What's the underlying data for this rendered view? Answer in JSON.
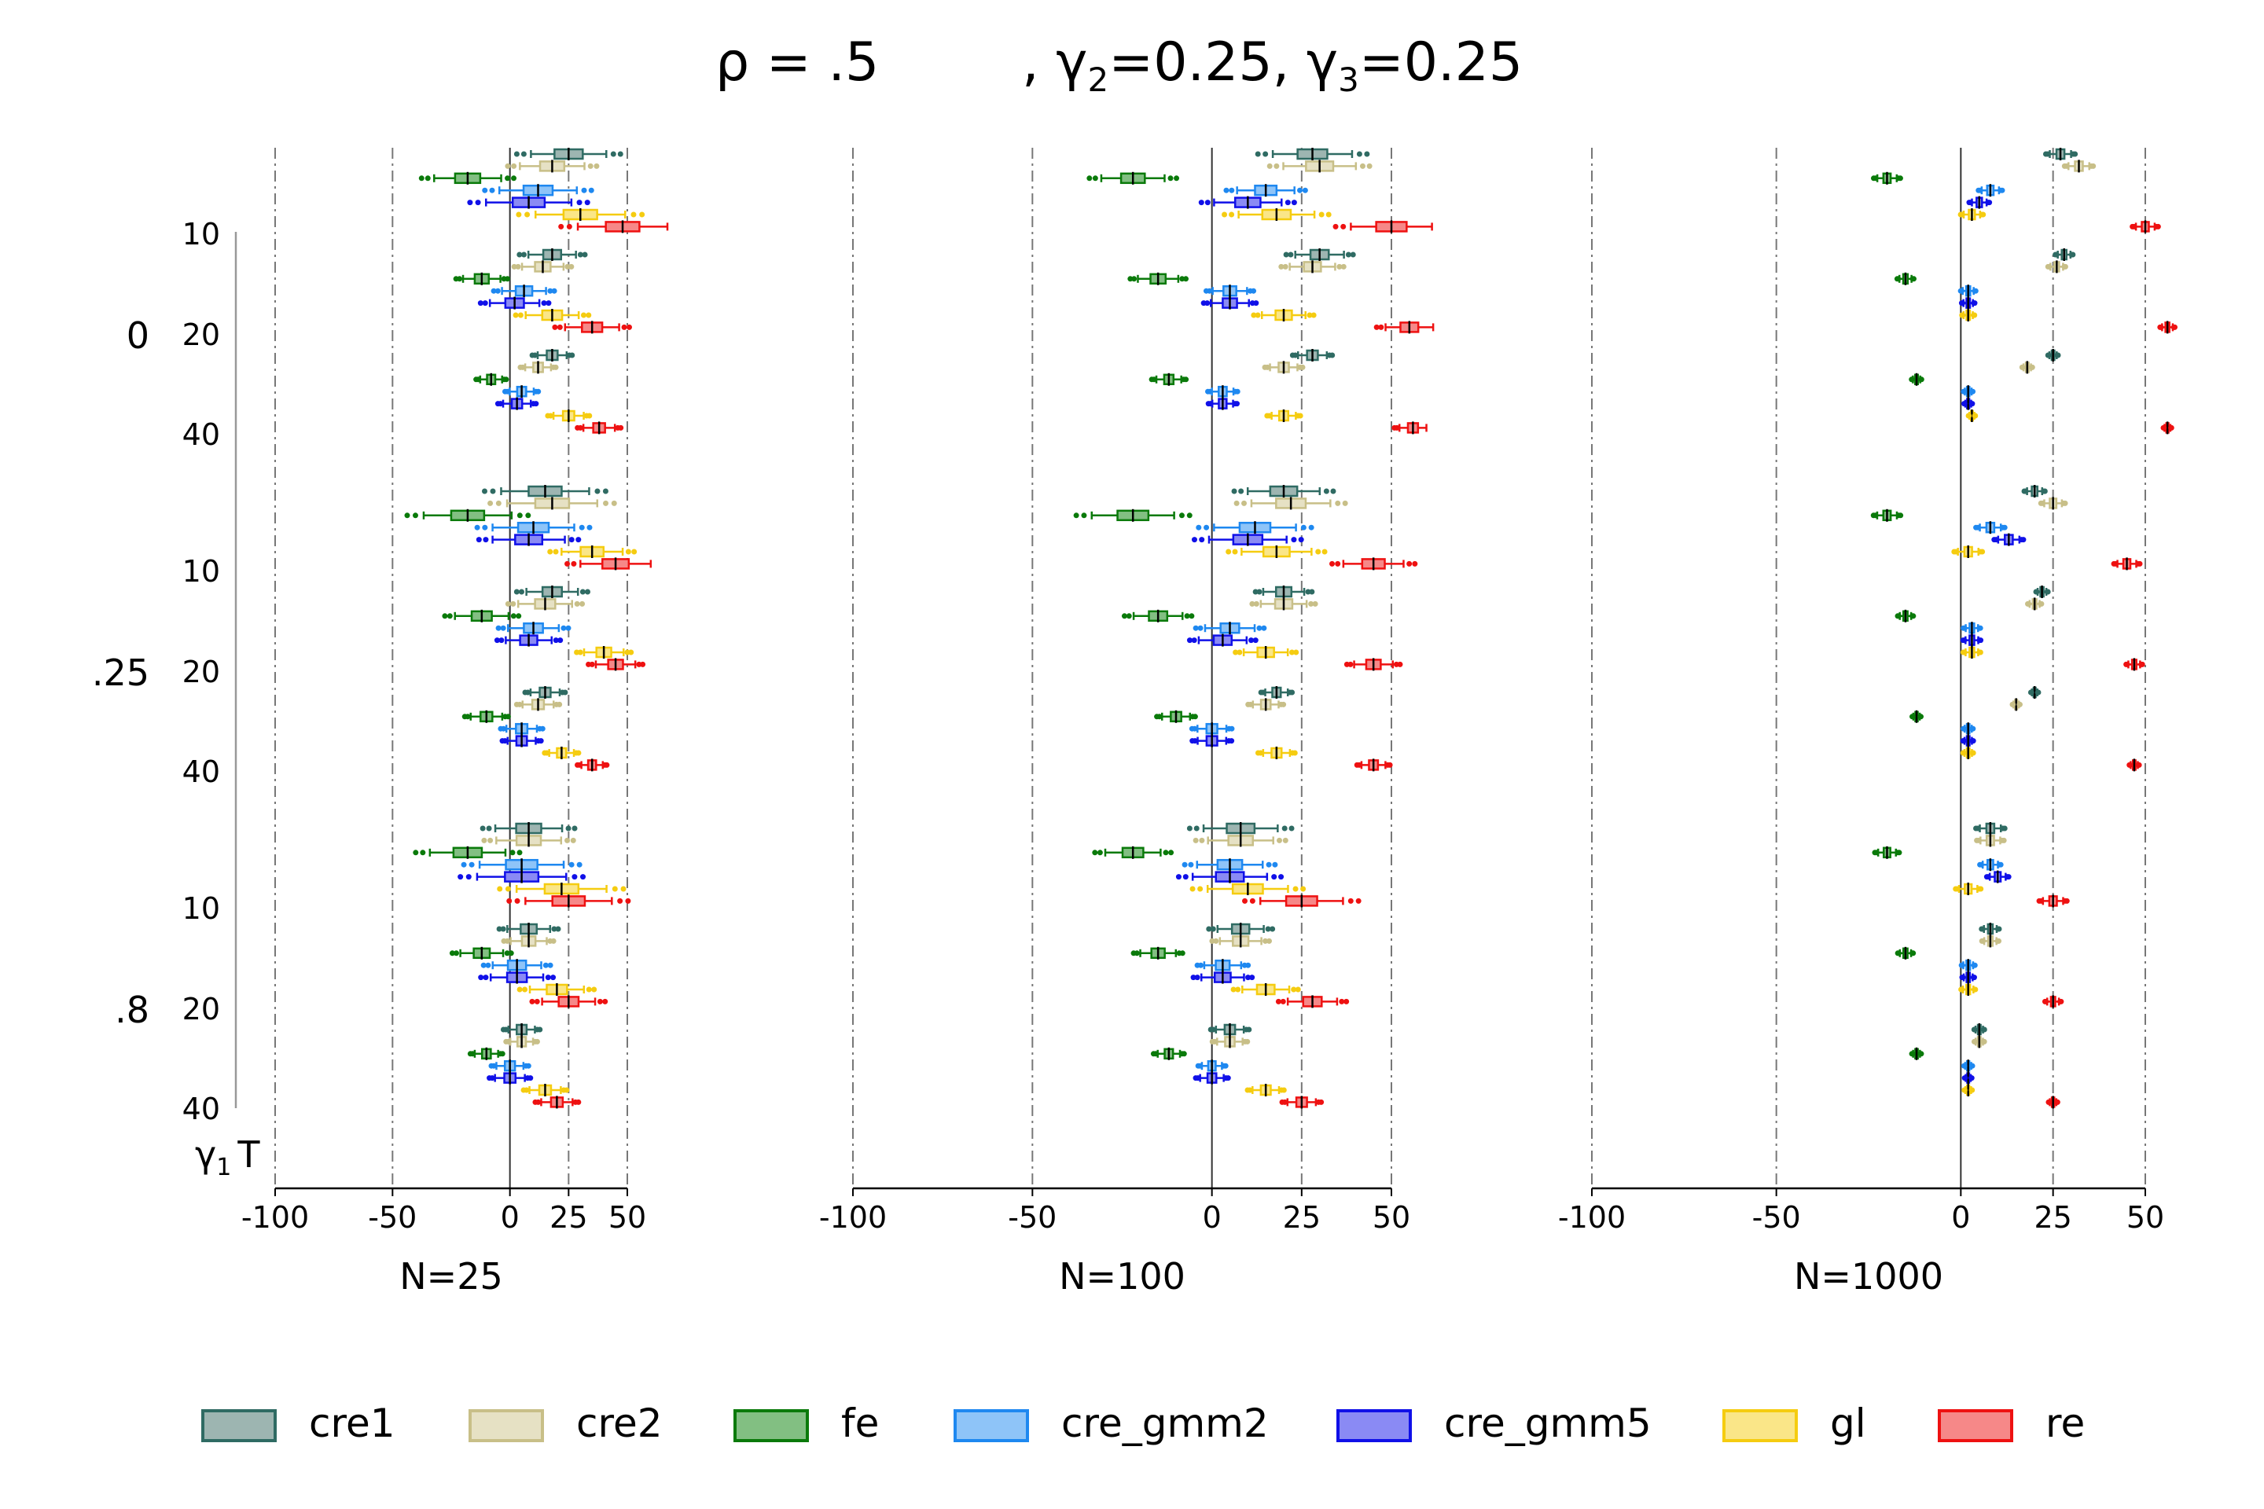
{
  "chart_data": {
    "type": "boxplot",
    "title": {
      "part1": "ρ = .5",
      "part2": ", γ",
      "sub2": "2",
      "part3": "=0.25, γ",
      "sub3": "3",
      "part4": "=0.25"
    },
    "axis_corner": {
      "gamma": "γ",
      "sub": "1",
      "t": "T"
    },
    "x_ticks": [
      -100,
      -50,
      0,
      25,
      50
    ],
    "x_tick_labels": [
      "-100",
      "-50",
      "0",
      "25",
      "50"
    ],
    "xlim": [
      -100,
      55
    ],
    "reference_lines": [
      -100,
      -50,
      25,
      50
    ],
    "panels": [
      "N=25",
      "N=100",
      "N=1000"
    ],
    "gamma1_levels": [
      "0",
      ".25",
      ".8"
    ],
    "T_levels": [
      "10",
      "20",
      "40"
    ],
    "estimators": [
      {
        "name": "cre1",
        "color": "#2f6b63",
        "fill": "#9db5b1"
      },
      {
        "name": "cre2",
        "color": "#c8bf88",
        "fill": "#e6e1c4"
      },
      {
        "name": "fe",
        "color": "#0a7a0a",
        "fill": "#82bf82"
      },
      {
        "name": "cre_gmm2",
        "color": "#1e88f0",
        "fill": "#8ec4f8"
      },
      {
        "name": "cre_gmm5",
        "color": "#1010e8",
        "fill": "#8a8af4"
      },
      {
        "name": "gl",
        "color": "#f5cc10",
        "fill": "#fae688"
      },
      {
        "name": "re",
        "color": "#ee1111",
        "fill": "#f68888"
      }
    ],
    "medians": {
      "N=25": {
        "0": {
          "10": [
            25,
            18,
            -18,
            12,
            8,
            30,
            48
          ],
          "20": [
            18,
            14,
            -12,
            6,
            2,
            18,
            35
          ],
          "40": [
            18,
            12,
            -8,
            5,
            3,
            25,
            38
          ]
        },
        ".25": {
          "10": [
            15,
            18,
            -18,
            10,
            8,
            35,
            45
          ],
          "20": [
            18,
            15,
            -12,
            10,
            8,
            40,
            45
          ],
          "40": [
            15,
            12,
            -10,
            5,
            5,
            22,
            35
          ]
        },
        ".8": {
          "10": [
            8,
            8,
            -18,
            5,
            5,
            22,
            25
          ],
          "20": [
            8,
            8,
            -12,
            3,
            3,
            20,
            25
          ],
          "40": [
            5,
            5,
            -10,
            0,
            0,
            15,
            20
          ]
        }
      },
      "N=100": {
        "0": {
          "10": [
            28,
            30,
            -22,
            15,
            10,
            18,
            50
          ],
          "20": [
            30,
            28,
            -15,
            5,
            5,
            20,
            55
          ],
          "40": [
            28,
            20,
            -12,
            3,
            3,
            20,
            56
          ]
        },
        ".25": {
          "10": [
            20,
            22,
            -22,
            12,
            10,
            18,
            45
          ],
          "20": [
            20,
            20,
            -15,
            5,
            3,
            15,
            45
          ],
          "40": [
            18,
            15,
            -10,
            0,
            0,
            18,
            45
          ]
        },
        ".8": {
          "10": [
            8,
            8,
            -22,
            5,
            5,
            10,
            25
          ],
          "20": [
            8,
            8,
            -15,
            3,
            3,
            15,
            28
          ],
          "40": [
            5,
            5,
            -12,
            0,
            0,
            15,
            25
          ]
        }
      },
      "N=1000": {
        "0": {
          "10": [
            27,
            32,
            -20,
            8,
            5,
            3,
            50
          ],
          "20": [
            28,
            26,
            -15,
            2,
            2,
            2,
            56
          ],
          "40": [
            25,
            18,
            -12,
            2,
            2,
            3,
            56
          ]
        },
        ".25": {
          "10": [
            20,
            25,
            -20,
            8,
            13,
            2,
            45
          ],
          "20": [
            22,
            20,
            -15,
            3,
            3,
            3,
            47
          ],
          "40": [
            20,
            15,
            -12,
            2,
            2,
            2,
            47
          ]
        },
        ".8": {
          "10": [
            8,
            8,
            -20,
            8,
            10,
            2,
            25
          ],
          "20": [
            8,
            8,
            -15,
            2,
            2,
            2,
            25
          ],
          "40": [
            5,
            5,
            -12,
            2,
            2,
            2,
            25
          ]
        }
      }
    }
  }
}
